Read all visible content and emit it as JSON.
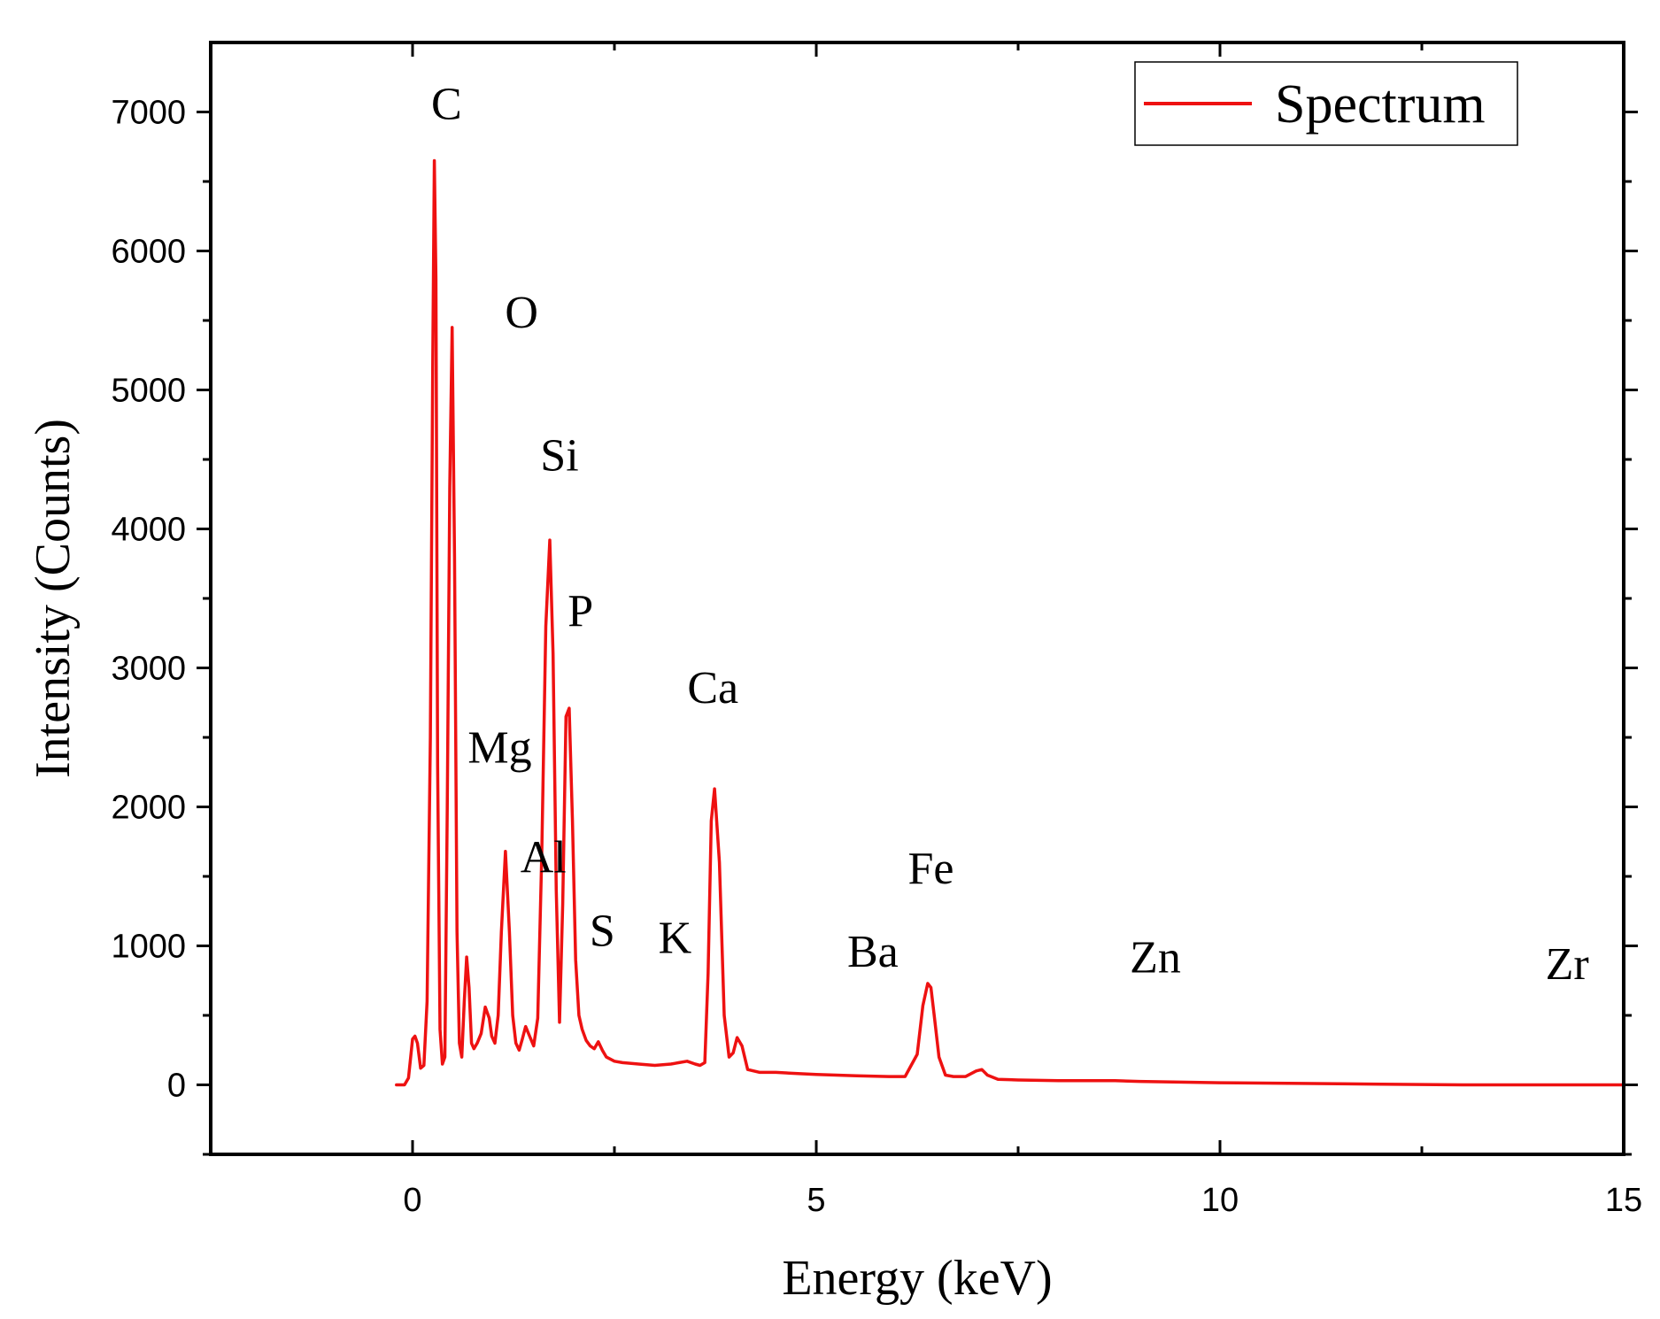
{
  "chart_data": {
    "type": "line",
    "title": "",
    "xlabel": "Energy (keV)",
    "ylabel": "Intensity (Counts)",
    "xlim": [
      -2.5,
      15
    ],
    "ylim": [
      -500,
      7500
    ],
    "x_ticks": [
      0,
      5,
      10,
      15
    ],
    "x_minor_ticks": [
      -2.5,
      2.5,
      7.5,
      12.5
    ],
    "y_ticks": [
      0,
      1000,
      2000,
      3000,
      4000,
      5000,
      6000,
      7000
    ],
    "y_minor_ticks": [
      -500,
      500,
      1500,
      2500,
      3500,
      4500,
      5500,
      6500
    ],
    "grid": false,
    "legend": {
      "position": "top-right",
      "entries": [
        "Spectrum"
      ]
    },
    "line_color": "#ee1111",
    "series": [
      {
        "name": "Spectrum",
        "x": [
          -0.2,
          -0.1,
          -0.05,
          0.0,
          0.03,
          0.06,
          0.1,
          0.14,
          0.18,
          0.22,
          0.25,
          0.27,
          0.29,
          0.31,
          0.34,
          0.37,
          0.4,
          0.43,
          0.46,
          0.49,
          0.52,
          0.55,
          0.58,
          0.61,
          0.64,
          0.67,
          0.7,
          0.73,
          0.76,
          0.8,
          0.85,
          0.9,
          0.95,
          0.98,
          1.02,
          1.06,
          1.1,
          1.15,
          1.2,
          1.24,
          1.28,
          1.32,
          1.36,
          1.4,
          1.45,
          1.5,
          1.55,
          1.6,
          1.65,
          1.7,
          1.74,
          1.78,
          1.82,
          1.86,
          1.9,
          1.94,
          1.98,
          2.02,
          2.06,
          2.1,
          2.15,
          2.2,
          2.25,
          2.3,
          2.35,
          2.4,
          2.5,
          2.6,
          2.8,
          3.0,
          3.2,
          3.3,
          3.4,
          3.5,
          3.56,
          3.62,
          3.66,
          3.7,
          3.74,
          3.8,
          3.86,
          3.92,
          3.97,
          4.02,
          4.08,
          4.15,
          4.3,
          4.5,
          4.8,
          5.0,
          5.5,
          5.9,
          6.1,
          6.25,
          6.32,
          6.38,
          6.42,
          6.46,
          6.52,
          6.6,
          6.7,
          6.85,
          6.98,
          7.05,
          7.12,
          7.25,
          7.5,
          8.0,
          8.7,
          9.0,
          9.5,
          10.0,
          11.0,
          12.0,
          13.0,
          14.0,
          15.0
        ],
        "values": [
          0,
          0,
          50,
          330,
          350,
          300,
          120,
          140,
          600,
          2500,
          5200,
          6650,
          5800,
          2300,
          400,
          150,
          200,
          2000,
          4300,
          5450,
          3800,
          1100,
          300,
          200,
          600,
          920,
          700,
          300,
          260,
          300,
          370,
          560,
          480,
          350,
          300,
          500,
          1100,
          1680,
          1100,
          500,
          300,
          250,
          330,
          420,
          350,
          280,
          480,
          1650,
          3300,
          3920,
          3100,
          1400,
          450,
          1300,
          2650,
          2710,
          1900,
          900,
          500,
          400,
          320,
          280,
          260,
          310,
          250,
          200,
          170,
          160,
          150,
          140,
          150,
          160,
          170,
          150,
          140,
          160,
          800,
          1900,
          2130,
          1600,
          500,
          200,
          230,
          340,
          280,
          110,
          90,
          90,
          80,
          75,
          65,
          60,
          60,
          220,
          570,
          730,
          700,
          500,
          200,
          70,
          60,
          60,
          100,
          110,
          70,
          40,
          35,
          30,
          30,
          25,
          20,
          15,
          10,
          5,
          0,
          0,
          0
        ]
      }
    ],
    "annotations": [
      {
        "text": "C",
        "x": 0.42,
        "y": 6950
      },
      {
        "text": "O",
        "x": 1.35,
        "y": 5450
      },
      {
        "text": "Si",
        "x": 1.82,
        "y": 4420
      },
      {
        "text": "P",
        "x": 2.08,
        "y": 3300
      },
      {
        "text": "Ca",
        "x": 3.72,
        "y": 2750
      },
      {
        "text": "Mg",
        "x": 1.08,
        "y": 2320
      },
      {
        "text": "Al",
        "x": 1.62,
        "y": 1530
      },
      {
        "text": "S",
        "x": 2.35,
        "y": 1000
      },
      {
        "text": "K",
        "x": 3.25,
        "y": 950
      },
      {
        "text": "Fe",
        "x": 6.42,
        "y": 1450
      },
      {
        "text": "Ba",
        "x": 5.7,
        "y": 850
      },
      {
        "text": "Zn",
        "x": 9.2,
        "y": 810
      },
      {
        "text": "Zr",
        "x": 14.3,
        "y": 760
      }
    ]
  }
}
